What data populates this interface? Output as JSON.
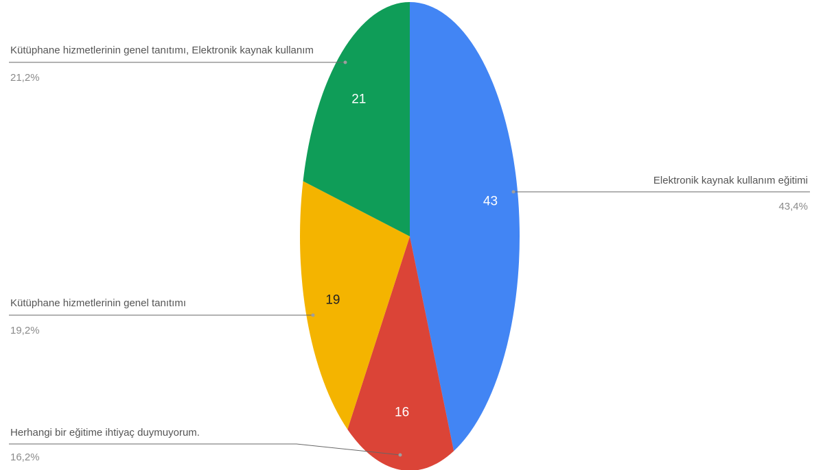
{
  "chart_data": {
    "type": "pie",
    "title": "",
    "categories": [
      "Elektronik kaynak kullanım eğitimi",
      "Herhangi bir eğitime ihtiyaç duymuyorum.",
      "Kütüphane hizmetlerinin genel tanıtımı",
      "Kütüphane hizmetlerinin genel tanıtımı, Elektronik kaynak kullanım"
    ],
    "values": [
      43,
      16,
      19,
      21
    ],
    "value_labels": [
      "43",
      "16",
      "19",
      "21"
    ],
    "percent_labels": [
      "43,4%",
      "16,2%",
      "19,2%",
      "21,2%"
    ],
    "colors": [
      "#4285F4",
      "#DB4437",
      "#F4B400",
      "#0F9D58"
    ],
    "value_label_colors": [
      "#ffffff",
      "#ffffff",
      "#222222",
      "#ffffff"
    ],
    "legend": "callouts"
  }
}
